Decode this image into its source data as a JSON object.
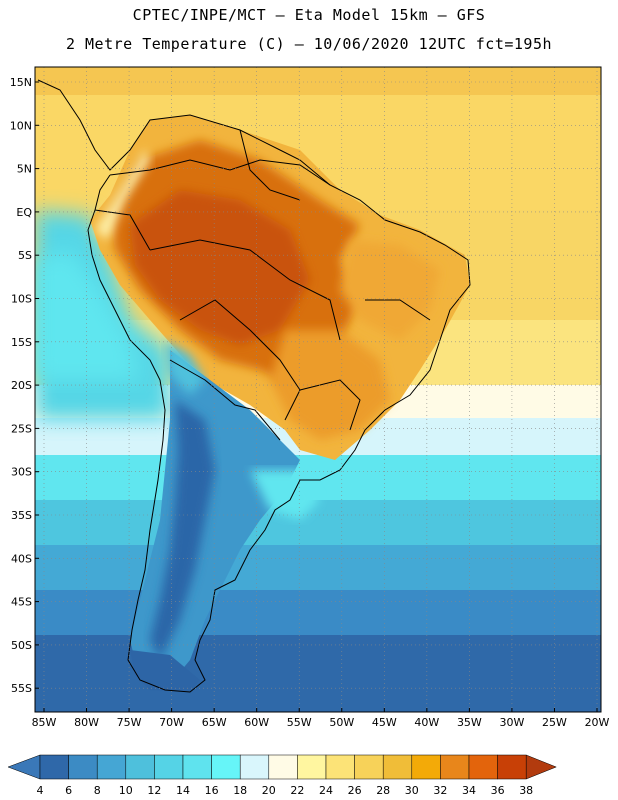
{
  "header": {
    "line1": "CPTEC/INPE/MCT –  Eta Model 15km – GFS",
    "line2": "2 Metre Temperature (C) – 10/06/2020 12UTC fct=195h"
  },
  "map": {
    "lat_labels": [
      "15N",
      "10N",
      "5N",
      "EQ",
      "5S",
      "10S",
      "15S",
      "20S",
      "25S",
      "30S",
      "35S",
      "40S",
      "45S",
      "50S",
      "55S"
    ],
    "lat_values": [
      15,
      10,
      5,
      0,
      -5,
      -10,
      -15,
      -20,
      -25,
      -30,
      -35,
      -40,
      -45,
      -50,
      -55
    ],
    "lon_labels": [
      "85W",
      "80W",
      "75W",
      "70W",
      "65W",
      "60W",
      "55W",
      "50W",
      "45W",
      "40W",
      "35W",
      "30W",
      "25W",
      "20W"
    ],
    "lon_values": [
      -85,
      -80,
      -75,
      -70,
      -65,
      -60,
      -55,
      -50,
      -45,
      -40,
      -35,
      -30,
      -25,
      -20
    ]
  },
  "colorbar": {
    "labels": [
      "4",
      "6",
      "8",
      "10",
      "12",
      "14",
      "16",
      "18",
      "20",
      "22",
      "24",
      "26",
      "28",
      "30",
      "32",
      "34",
      "36",
      "38"
    ],
    "colors": [
      "#3a78b8",
      "#2f68a9",
      "#3c8bc4",
      "#45a6d4",
      "#4ec0dc",
      "#55d3e6",
      "#5fe3ee",
      "#66f5f8",
      "#d9f6fc",
      "#fffbe6",
      "#fff6a0",
      "#fce377",
      "#f7d259",
      "#f0bd38",
      "#f3aa08",
      "#e8861b",
      "#e3640c",
      "#c84006",
      "#b23b0e"
    ]
  }
}
